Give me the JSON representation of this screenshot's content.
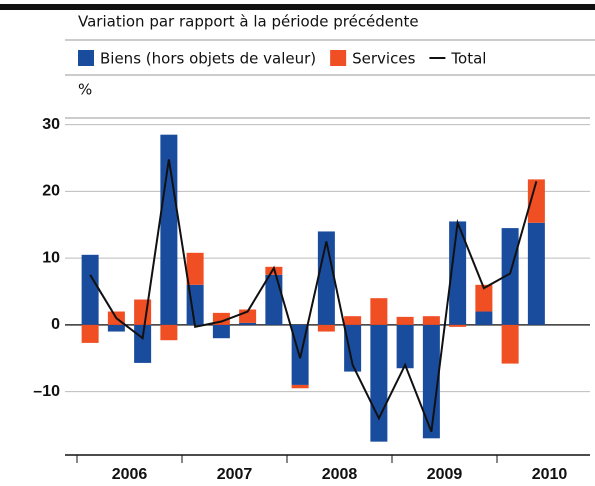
{
  "chart_data": {
    "type": "bar",
    "subtitle": "Variation par rapport à la période précédente",
    "unit": "%",
    "year_labels": [
      "2006",
      "2007",
      "2008",
      "2009",
      "2010"
    ],
    "categories": [
      null,
      null,
      null,
      null,
      null,
      null,
      null,
      null,
      null,
      null,
      null,
      null,
      null,
      null,
      null,
      null,
      null,
      null,
      null,
      null
    ],
    "series": [
      {
        "name": "Biens (hors objets de valeur)",
        "color": "#1a4c9e",
        "values": [
          10.5,
          -1,
          -5.7,
          28.5,
          6,
          -2,
          0.3,
          7.5,
          -9,
          14,
          -7,
          -17.5,
          -6.5,
          -17,
          15.5,
          2,
          14.5,
          15.3,
          null,
          null
        ]
      },
      {
        "name": "Services",
        "color": "#f04e23",
        "values": [
          -2.7,
          2,
          3.8,
          -2.3,
          4.8,
          1.8,
          2,
          1.2,
          -0.5,
          -1,
          1.3,
          4,
          1.2,
          1.3,
          -0.3,
          4,
          -5.8,
          6.5,
          null,
          null
        ]
      },
      {
        "name": "Total",
        "type": "line",
        "color": "#111111",
        "values": [
          7.5,
          1,
          -2,
          24.8,
          -0.3,
          0.5,
          2,
          8.5,
          -5,
          12.5,
          -6,
          -14,
          -6,
          -16,
          15.3,
          5.5,
          7.7,
          21.5,
          null,
          null
        ]
      }
    ],
    "ylim": [
      -19.5,
      31
    ],
    "yticks": [
      {
        "value": -10,
        "label": "–10"
      },
      0,
      10,
      20,
      30
    ],
    "grid": true
  }
}
